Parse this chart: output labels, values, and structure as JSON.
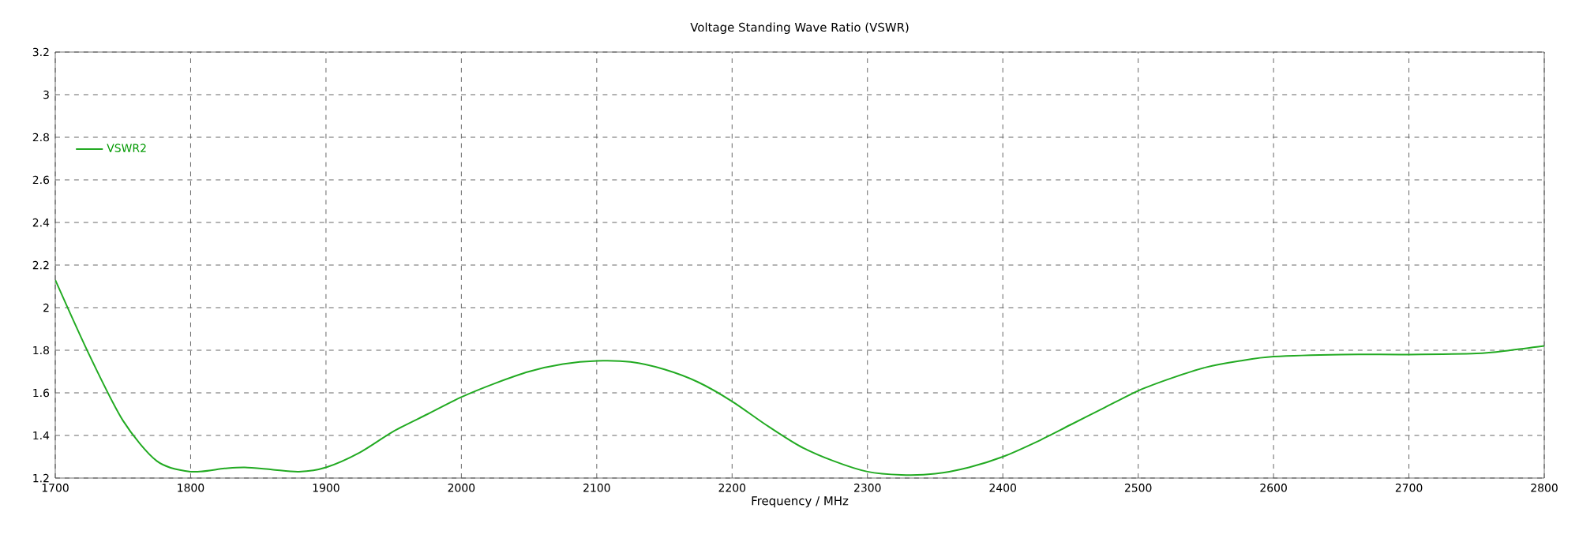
{
  "chart_data": {
    "type": "line",
    "title": "Voltage Standing Wave Ratio (VSWR)",
    "xlabel": "Frequency / MHz",
    "x": [
      1700,
      1725,
      1750,
      1775,
      1800,
      1825,
      1840,
      1860,
      1880,
      1900,
      1925,
      1950,
      1975,
      2000,
      2025,
      2050,
      2075,
      2100,
      2125,
      2150,
      2175,
      2200,
      2225,
      2250,
      2275,
      2300,
      2325,
      2350,
      2375,
      2400,
      2425,
      2450,
      2475,
      2500,
      2525,
      2550,
      2575,
      2600,
      2650,
      2700,
      2750,
      2775,
      2800
    ],
    "series": [
      {
        "name": "VSWR2",
        "color": "#22aa22",
        "values": [
          2.13,
          1.78,
          1.47,
          1.28,
          1.23,
          1.245,
          1.25,
          1.24,
          1.23,
          1.25,
          1.32,
          1.42,
          1.5,
          1.58,
          1.645,
          1.7,
          1.735,
          1.75,
          1.745,
          1.71,
          1.65,
          1.56,
          1.45,
          1.35,
          1.28,
          1.23,
          1.215,
          1.22,
          1.25,
          1.3,
          1.37,
          1.45,
          1.53,
          1.61,
          1.67,
          1.72,
          1.75,
          1.77,
          1.78,
          1.78,
          1.785,
          1.8,
          1.82
        ]
      }
    ],
    "xlim": [
      1700,
      2800
    ],
    "ylim": [
      1.2,
      3.2
    ],
    "xticks": [
      1700,
      1800,
      1900,
      2000,
      2100,
      2200,
      2300,
      2400,
      2500,
      2600,
      2700,
      2800
    ],
    "yticks": [
      1.2,
      1.4,
      1.6,
      1.8,
      2,
      2.2,
      2.4,
      2.6,
      2.8,
      3,
      3.2
    ],
    "grid": true,
    "legend": "top left",
    "line_style": "solid",
    "marker": "none"
  }
}
